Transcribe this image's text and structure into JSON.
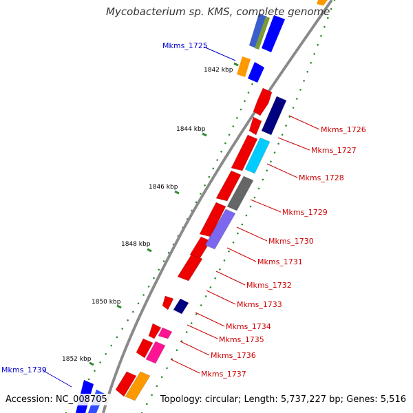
{
  "title": "Mycobacterium sp. KMS, complete genome",
  "footer": {
    "accession": "Accession: NC_008705",
    "topology": "Topology: circular; Length: 5,737,227 bp; Genes: 5,516"
  },
  "ticks": [
    "1842 kbp",
    "1844 kbp",
    "1846 kbp",
    "1848 kbp",
    "1850 kbp",
    "1852 kbp"
  ],
  "genes": [
    {
      "label": "Mkms_1725",
      "color": "#0000cc"
    },
    {
      "label": "Mkms_1726",
      "color": "#cc0000"
    },
    {
      "label": "Mkms_1727",
      "color": "#cc0000"
    },
    {
      "label": "Mkms_1728",
      "color": "#cc0000"
    },
    {
      "label": "Mkms_1729",
      "color": "#cc0000"
    },
    {
      "label": "Mkms_1730",
      "color": "#cc0000"
    },
    {
      "label": "Mkms_1731",
      "color": "#cc0000"
    },
    {
      "label": "Mkms_1732",
      "color": "#cc0000"
    },
    {
      "label": "Mkms_1733",
      "color": "#cc0000"
    },
    {
      "label": "Mkms_1734",
      "color": "#cc0000"
    },
    {
      "label": "Mkms_1735",
      "color": "#cc0000"
    },
    {
      "label": "Mkms_1736",
      "color": "#cc0000"
    },
    {
      "label": "Mkms_1737",
      "color": "#cc0000"
    },
    {
      "label": "Mkms_1739",
      "color": "#0000cc"
    }
  ],
  "colors": {
    "red": "#ee0000",
    "blue": "#0000ff",
    "navy": "#000080",
    "cyan": "#00ccff",
    "gray": "#666666",
    "slate": "#7b68ee",
    "pink": "#ff1493",
    "orange": "#ff9900",
    "green": "#228b22",
    "backbone": "#808080"
  }
}
